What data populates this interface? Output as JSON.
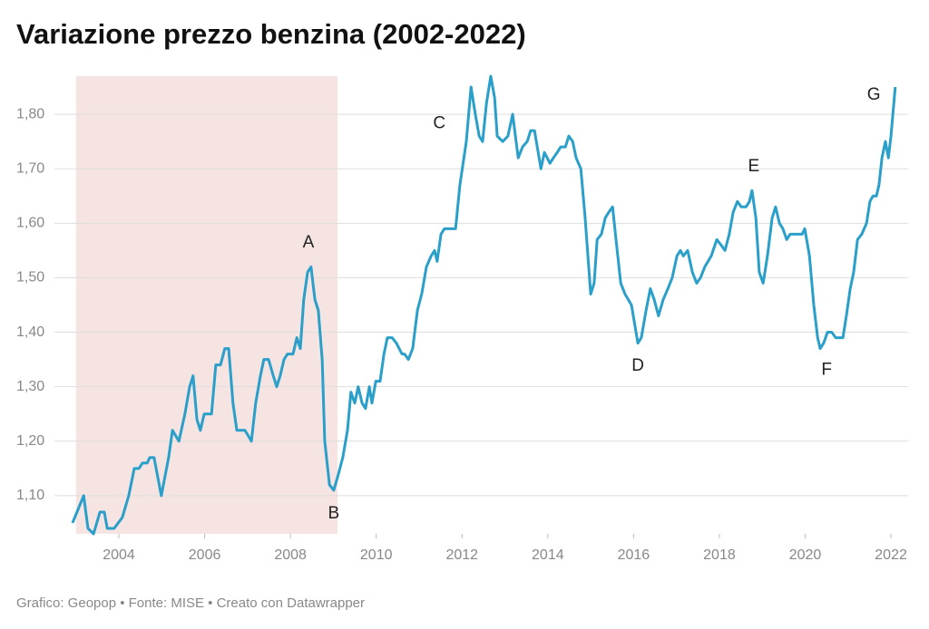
{
  "chart_data": {
    "type": "line",
    "title": "Variazione prezzo benzina (2002-2022)",
    "source": "Grafico: Geopop • Fonte: MISE • Creato con Datawrapper",
    "color": "#2a9fc9",
    "grid": true,
    "xlim": [
      2002.9,
      2022.4
    ],
    "ylim": [
      1.03,
      1.87
    ],
    "xticks": [
      2004,
      2006,
      2008,
      2010,
      2012,
      2014,
      2016,
      2018,
      2020,
      2022
    ],
    "yticks": [
      {
        "value": 1.1,
        "label": "1,10"
      },
      {
        "value": 1.2,
        "label": "1,20"
      },
      {
        "value": 1.3,
        "label": "1,30"
      },
      {
        "value": 1.4,
        "label": "1,40"
      },
      {
        "value": 1.5,
        "label": "1,50"
      },
      {
        "value": 1.6,
        "label": "1,60"
      },
      {
        "value": 1.7,
        "label": "1,70"
      },
      {
        "value": 1.8,
        "label": "1,80"
      }
    ],
    "highlight": {
      "x": [
        2003,
        2009.1
      ],
      "color": "#f6e4e2"
    },
    "annotations": [
      {
        "text": "A",
        "x": 2008.42,
        "y": 1.564
      },
      {
        "text": "B",
        "x": 2009.01,
        "y": 1.067
      },
      {
        "text": "C",
        "x": 2011.47,
        "y": 1.783
      },
      {
        "text": "D",
        "x": 2016.1,
        "y": 1.338
      },
      {
        "text": "E",
        "x": 2018.8,
        "y": 1.704
      },
      {
        "text": "F",
        "x": 2020.5,
        "y": 1.33
      },
      {
        "text": "G",
        "x": 2021.6,
        "y": 1.835
      }
    ],
    "x": [
      2002.92,
      2003.18,
      2003.28,
      2003.41,
      2003.56,
      2003.66,
      2003.73,
      2003.89,
      2004.08,
      2004.23,
      2004.36,
      2004.47,
      2004.55,
      2004.66,
      2004.72,
      2004.82,
      2004.99,
      2005.16,
      2005.25,
      2005.4,
      2005.54,
      2005.65,
      2005.73,
      2005.82,
      2005.9,
      2005.99,
      2006.16,
      2006.26,
      2006.37,
      2006.47,
      2006.56,
      2006.66,
      2006.75,
      2006.94,
      2007.09,
      2007.19,
      2007.3,
      2007.38,
      2007.49,
      2007.6,
      2007.68,
      2007.76,
      2007.85,
      2007.93,
      2008.06,
      2008.15,
      2008.23,
      2008.31,
      2008.4,
      2008.48,
      2008.57,
      2008.65,
      2008.74,
      2008.8,
      2008.91,
      2009.01,
      2009.12,
      2009.22,
      2009.33,
      2009.41,
      2009.5,
      2009.58,
      2009.67,
      2009.75,
      2009.84,
      2009.9,
      2009.99,
      2010.09,
      2010.18,
      2010.26,
      2010.37,
      2010.47,
      2010.6,
      2010.66,
      2010.75,
      2010.85,
      2010.96,
      2011.06,
      2011.17,
      2011.28,
      2011.36,
      2011.42,
      2011.51,
      2011.59,
      2011.76,
      2011.85,
      2011.95,
      2012.1,
      2012.21,
      2012.31,
      2012.4,
      2012.48,
      2012.57,
      2012.67,
      2012.76,
      2012.82,
      2012.95,
      2013.07,
      2013.18,
      2013.31,
      2013.41,
      2013.52,
      2013.6,
      2013.69,
      2013.84,
      2013.92,
      2014.05,
      2014.13,
      2014.22,
      2014.3,
      2014.41,
      2014.49,
      2014.58,
      2014.66,
      2014.77,
      2014.87,
      2015.0,
      2015.08,
      2015.15,
      2015.25,
      2015.34,
      2015.42,
      2015.51,
      2015.59,
      2015.7,
      2015.8,
      2015.95,
      2016.1,
      2016.18,
      2016.29,
      2016.39,
      2016.48,
      2016.58,
      2016.69,
      2016.8,
      2016.9,
      2017.01,
      2017.09,
      2017.16,
      2017.26,
      2017.37,
      2017.47,
      2017.56,
      2017.66,
      2017.81,
      2017.94,
      2018.04,
      2018.13,
      2018.23,
      2018.32,
      2018.42,
      2018.51,
      2018.62,
      2018.7,
      2018.76,
      2018.85,
      2018.93,
      2019.02,
      2019.12,
      2019.23,
      2019.31,
      2019.4,
      2019.48,
      2019.57,
      2019.65,
      2019.82,
      2019.93,
      2019.99,
      2020.1,
      2020.2,
      2020.29,
      2020.35,
      2020.43,
      2020.52,
      2020.62,
      2020.71,
      2020.88,
      2020.96,
      2021.05,
      2021.13,
      2021.22,
      2021.32,
      2021.43,
      2021.51,
      2021.58,
      2021.66,
      2021.72,
      2021.79,
      2021.87,
      2021.94,
      2022.0,
      2022.1
    ],
    "values": [
      1.05,
      1.1,
      1.04,
      1.03,
      1.07,
      1.07,
      1.04,
      1.04,
      1.06,
      1.1,
      1.15,
      1.15,
      1.16,
      1.16,
      1.17,
      1.17,
      1.1,
      1.17,
      1.22,
      1.2,
      1.25,
      1.3,
      1.32,
      1.24,
      1.22,
      1.25,
      1.25,
      1.34,
      1.34,
      1.37,
      1.37,
      1.27,
      1.22,
      1.22,
      1.2,
      1.27,
      1.32,
      1.35,
      1.35,
      1.32,
      1.3,
      1.32,
      1.35,
      1.36,
      1.36,
      1.39,
      1.37,
      1.46,
      1.51,
      1.52,
      1.46,
      1.44,
      1.35,
      1.2,
      1.12,
      1.11,
      1.14,
      1.17,
      1.22,
      1.29,
      1.27,
      1.3,
      1.27,
      1.26,
      1.3,
      1.27,
      1.31,
      1.31,
      1.36,
      1.39,
      1.39,
      1.38,
      1.36,
      1.36,
      1.35,
      1.37,
      1.44,
      1.47,
      1.52,
      1.54,
      1.55,
      1.53,
      1.58,
      1.59,
      1.59,
      1.59,
      1.67,
      1.75,
      1.85,
      1.8,
      1.76,
      1.75,
      1.82,
      1.87,
      1.83,
      1.76,
      1.75,
      1.76,
      1.8,
      1.72,
      1.74,
      1.75,
      1.77,
      1.77,
      1.7,
      1.73,
      1.71,
      1.72,
      1.73,
      1.74,
      1.74,
      1.76,
      1.75,
      1.72,
      1.7,
      1.61,
      1.47,
      1.49,
      1.57,
      1.58,
      1.61,
      1.62,
      1.63,
      1.57,
      1.49,
      1.47,
      1.45,
      1.38,
      1.39,
      1.44,
      1.48,
      1.46,
      1.43,
      1.46,
      1.48,
      1.5,
      1.54,
      1.55,
      1.54,
      1.55,
      1.51,
      1.49,
      1.5,
      1.52,
      1.54,
      1.57,
      1.56,
      1.55,
      1.58,
      1.62,
      1.64,
      1.63,
      1.63,
      1.64,
      1.66,
      1.61,
      1.51,
      1.49,
      1.54,
      1.61,
      1.63,
      1.6,
      1.59,
      1.57,
      1.58,
      1.58,
      1.58,
      1.59,
      1.54,
      1.45,
      1.39,
      1.37,
      1.38,
      1.4,
      1.4,
      1.39,
      1.39,
      1.43,
      1.48,
      1.51,
      1.57,
      1.58,
      1.6,
      1.64,
      1.65,
      1.65,
      1.67,
      1.72,
      1.75,
      1.72,
      1.76,
      1.85
    ]
  }
}
